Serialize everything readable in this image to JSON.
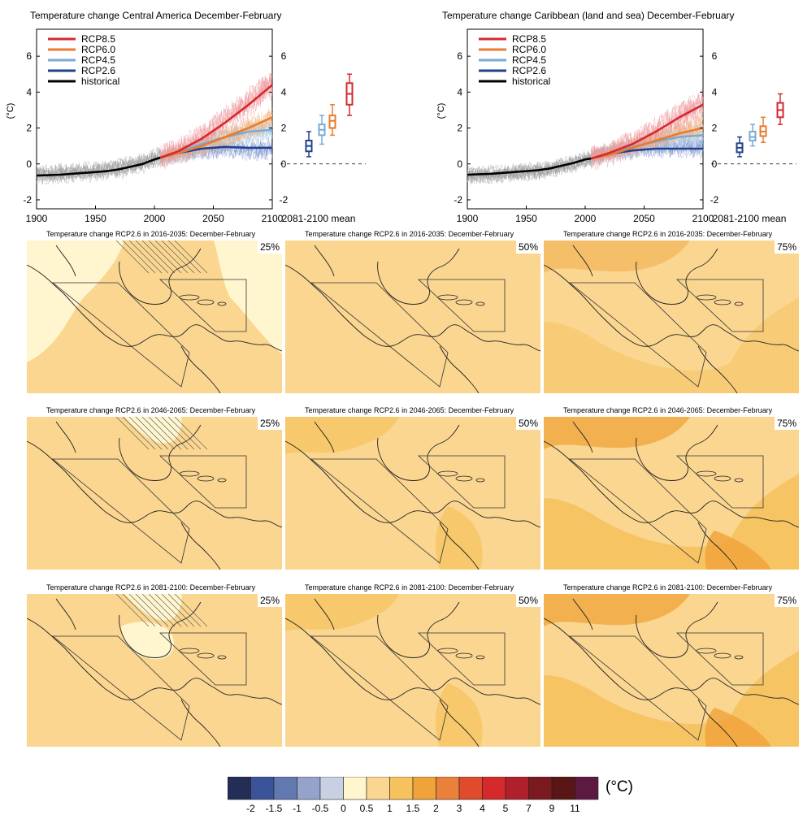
{
  "timeseries": [
    {
      "title": "Temperature change Central America December-February",
      "ylabel": "(°C)",
      "legend": [
        "RCP8.5",
        "RCP6.0",
        "RCP4.5",
        "RCP2.6",
        "historical"
      ],
      "xticks": [
        "1900",
        "1950",
        "2000",
        "2050",
        "2100"
      ],
      "yticks": [
        "-2",
        "0",
        "2",
        "4",
        "6"
      ],
      "box_xlabel": "2081-2100 mean"
    },
    {
      "title": "Temperature change Caribbean (land and sea) December-February",
      "ylabel": "(°C)",
      "legend": [
        "RCP8.5",
        "RCP6.0",
        "RCP4.5",
        "RCP2.6",
        "historical"
      ],
      "xticks": [
        "1900",
        "1950",
        "2000",
        "2050",
        "2100"
      ],
      "yticks": [
        "-2",
        "0",
        "2",
        "4",
        "6"
      ],
      "box_xlabel": "2081-2100 mean"
    }
  ],
  "maps": {
    "rows": [
      {
        "titles": [
          "Temperature change RCP2.6 in 2016-2035: December-February",
          "Temperature change RCP2.6 in 2016-2035: December-February",
          "Temperature change RCP2.6 in 2016-2035: December-February"
        ],
        "percentiles": [
          "25%",
          "50%",
          "75%"
        ]
      },
      {
        "titles": [
          "Temperature change RCP2.6 in 2046-2065: December-February",
          "Temperature change RCP2.6 in 2046-2065: December-February",
          "Temperature change RCP2.6 in 2046-2065: December-February"
        ],
        "percentiles": [
          "25%",
          "50%",
          "75%"
        ]
      },
      {
        "titles": [
          "Temperature change RCP2.6 in 2081-2100: December-February",
          "Temperature change RCP2.6 in 2081-2100: December-February",
          "Temperature change RCP2.6 in 2081-2100: December-February"
        ],
        "percentiles": [
          "25%",
          "50%",
          "75%"
        ]
      }
    ]
  },
  "colorbar": {
    "unit": "(°C)",
    "labels": [
      "-2",
      "-1.5",
      "-1",
      "-0.5",
      "0",
      "0.5",
      "1",
      "1.5",
      "2",
      "3",
      "4",
      "5",
      "7",
      "9",
      "11"
    ],
    "colors": [
      "#232d55",
      "#3b5499",
      "#6278b1",
      "#95a3ca",
      "#c8d0e4",
      "#fff6cf",
      "#fad691",
      "#f6c25e",
      "#f0a33a",
      "#e9813b",
      "#df4b2c",
      "#d62a2a",
      "#b01f2c",
      "#7a1a1f",
      "#5a1515",
      "#5c1a40"
    ]
  },
  "chart_data": [
    {
      "type": "line",
      "title": "Temperature change Central America December-February",
      "ylabel": "(°C)",
      "xlim": [
        1900,
        2100
      ],
      "ylim": [
        -2.5,
        7.5
      ],
      "series": [
        {
          "name": "historical",
          "color": "#000000",
          "x": [
            1900,
            1920,
            1940,
            1960,
            1970,
            1980,
            1990,
            2000,
            2005
          ],
          "values": [
            -0.65,
            -0.6,
            -0.5,
            -0.4,
            -0.3,
            -0.15,
            0.0,
            0.25,
            0.35
          ]
        },
        {
          "name": "RCP8.5",
          "color": "#d42a2e",
          "x": [
            2005,
            2020,
            2040,
            2060,
            2080,
            2100
          ],
          "values": [
            0.35,
            0.7,
            1.4,
            2.3,
            3.3,
            4.4
          ]
        },
        {
          "name": "RCP6.0",
          "color": "#e87b2e",
          "x": [
            2005,
            2020,
            2040,
            2060,
            2080,
            2100
          ],
          "values": [
            0.35,
            0.6,
            1.0,
            1.5,
            2.0,
            2.6
          ]
        },
        {
          "name": "RCP4.5",
          "color": "#7aaad6",
          "x": [
            2005,
            2020,
            2040,
            2060,
            2080,
            2100
          ],
          "values": [
            0.35,
            0.65,
            1.1,
            1.5,
            1.8,
            1.9
          ]
        },
        {
          "name": "RCP2.6",
          "color": "#22418d",
          "x": [
            2005,
            2020,
            2040,
            2060,
            2080,
            2100
          ],
          "values": [
            0.35,
            0.6,
            0.85,
            0.95,
            0.9,
            0.9
          ]
        }
      ],
      "boxes_2081_2100": [
        {
          "name": "RCP2.6",
          "min": 0.4,
          "q1": 0.7,
          "median": 1.0,
          "q3": 1.3,
          "max": 1.8
        },
        {
          "name": "RCP4.5",
          "min": 1.1,
          "q1": 1.6,
          "median": 1.9,
          "q3": 2.2,
          "max": 2.7
        },
        {
          "name": "RCP6.0",
          "min": 1.6,
          "q1": 2.0,
          "median": 2.4,
          "q3": 2.7,
          "max": 3.3
        },
        {
          "name": "RCP8.5",
          "min": 2.7,
          "q1": 3.3,
          "median": 3.9,
          "q3": 4.5,
          "max": 5.0
        }
      ]
    },
    {
      "type": "line",
      "title": "Temperature change Caribbean (land and sea) December-February",
      "ylabel": "(°C)",
      "xlim": [
        1900,
        2100
      ],
      "ylim": [
        -2.5,
        7.5
      ],
      "series": [
        {
          "name": "historical",
          "color": "#000000",
          "x": [
            1900,
            1920,
            1940,
            1960,
            1970,
            1980,
            1990,
            2000,
            2005
          ],
          "values": [
            -0.6,
            -0.55,
            -0.45,
            -0.35,
            -0.25,
            -0.1,
            0.05,
            0.25,
            0.3
          ]
        },
        {
          "name": "RCP8.5",
          "color": "#d42a2e",
          "x": [
            2005,
            2020,
            2040,
            2060,
            2080,
            2100
          ],
          "values": [
            0.3,
            0.6,
            1.1,
            1.8,
            2.6,
            3.3
          ]
        },
        {
          "name": "RCP6.0",
          "color": "#e87b2e",
          "x": [
            2005,
            2020,
            2040,
            2060,
            2080,
            2100
          ],
          "values": [
            0.3,
            0.5,
            0.9,
            1.3,
            1.7,
            2.0
          ]
        },
        {
          "name": "RCP4.5",
          "color": "#7aaad6",
          "x": [
            2005,
            2020,
            2040,
            2060,
            2080,
            2100
          ],
          "values": [
            0.3,
            0.55,
            0.95,
            1.25,
            1.5,
            1.6
          ]
        },
        {
          "name": "RCP2.6",
          "color": "#22418d",
          "x": [
            2005,
            2020,
            2040,
            2060,
            2080,
            2100
          ],
          "values": [
            0.3,
            0.55,
            0.75,
            0.85,
            0.85,
            0.85
          ]
        }
      ],
      "boxes_2081_2100": [
        {
          "name": "RCP2.6",
          "min": 0.4,
          "q1": 0.65,
          "median": 0.9,
          "q3": 1.15,
          "max": 1.5
        },
        {
          "name": "RCP4.5",
          "min": 1.0,
          "q1": 1.3,
          "median": 1.5,
          "q3": 1.8,
          "max": 2.2
        },
        {
          "name": "RCP6.0",
          "min": 1.2,
          "q1": 1.55,
          "median": 1.8,
          "q3": 2.1,
          "max": 2.6
        },
        {
          "name": "RCP8.5",
          "min": 2.2,
          "q1": 2.6,
          "median": 3.0,
          "q3": 3.4,
          "max": 3.9
        }
      ]
    }
  ]
}
